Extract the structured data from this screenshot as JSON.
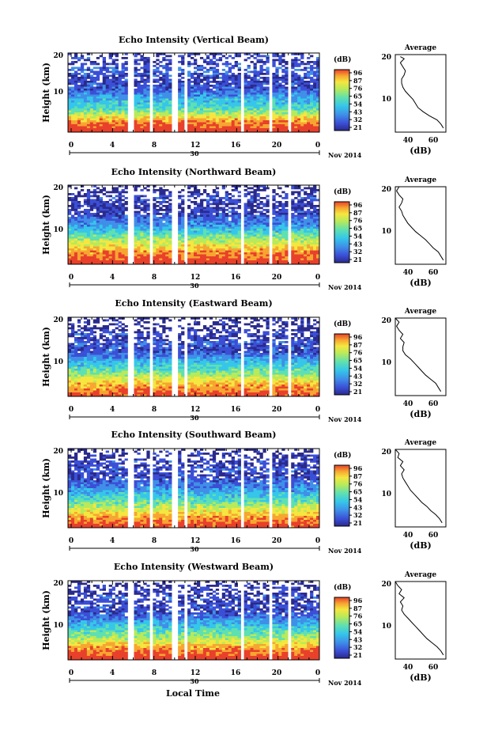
{
  "chart_data": [
    {
      "type": "heatmap",
      "title": "Echo Intensity (Vertical Beam)",
      "ylabel": "Height (km)",
      "y_ticks": [
        "10",
        "20"
      ],
      "ylim": [
        1,
        20
      ],
      "x_ticks": [
        "0",
        "4",
        "8",
        "12",
        "16",
        "20",
        "0"
      ],
      "xlim": [
        0,
        24
      ],
      "day_label": "30",
      "month_label": "Nov 2014",
      "colorbar_unit": "(dB)",
      "colorbar_ticks": [
        "96",
        "87",
        "76",
        "65",
        "54",
        "43",
        "32",
        "21"
      ],
      "value_range": [
        21,
        96
      ],
      "profile": {
        "title": "Average",
        "x_ticks": [
          "40",
          "60"
        ],
        "xlabel": "(dB)",
        "xlim": [
          30,
          70
        ],
        "y_ticks": [
          "10",
          "20"
        ],
        "heights": [
          2,
          3,
          4,
          5,
          6,
          7,
          8,
          9,
          10,
          11,
          12,
          13,
          14,
          15,
          16,
          17,
          18,
          19,
          19.5
        ],
        "values": [
          68,
          66,
          63,
          57,
          52,
          48,
          46,
          44,
          41,
          38,
          36,
          35,
          35,
          37,
          38,
          36,
          34,
          37,
          34
        ]
      }
    },
    {
      "type": "heatmap",
      "title": "Echo Intensity (Northward Beam)",
      "ylabel": "Height (km)",
      "y_ticks": [
        "10",
        "20"
      ],
      "ylim": [
        1,
        20
      ],
      "x_ticks": [
        "0",
        "4",
        "8",
        "12",
        "16",
        "20",
        "0"
      ],
      "xlim": [
        0,
        24
      ],
      "day_label": "30",
      "month_label": "Nov 2014",
      "colorbar_unit": "(dB)",
      "colorbar_ticks": [
        "96",
        "87",
        "76",
        "65",
        "54",
        "43",
        "32",
        "21"
      ],
      "value_range": [
        21,
        96
      ],
      "profile": {
        "title": "Average",
        "x_ticks": [
          "40",
          "60"
        ],
        "xlabel": "(dB)",
        "xlim": [
          30,
          70
        ],
        "y_ticks": [
          "10",
          "20"
        ],
        "heights": [
          2,
          3,
          4,
          5,
          6,
          7,
          8,
          9,
          10,
          11,
          12,
          13,
          14,
          15,
          16,
          17,
          18,
          19,
          20
        ],
        "values": [
          68,
          66,
          64,
          60,
          57,
          54,
          50,
          46,
          43,
          40,
          38,
          36,
          35,
          33,
          35,
          36,
          33,
          31,
          33
        ]
      }
    },
    {
      "type": "heatmap",
      "title": "Echo Intensity (Eastward Beam)",
      "ylabel": "Height (km)",
      "y_ticks": [
        "10",
        "20"
      ],
      "ylim": [
        1,
        20
      ],
      "x_ticks": [
        "0",
        "4",
        "8",
        "12",
        "16",
        "20",
        "0"
      ],
      "xlim": [
        0,
        24
      ],
      "day_label": "30",
      "month_label": "Nov 2014",
      "colorbar_unit": "(dB)",
      "colorbar_ticks": [
        "96",
        "87",
        "76",
        "65",
        "54",
        "43",
        "32",
        "21"
      ],
      "value_range": [
        21,
        96
      ],
      "profile": {
        "title": "Average",
        "x_ticks": [
          "40",
          "60"
        ],
        "xlabel": "(dB)",
        "xlim": [
          30,
          70
        ],
        "y_ticks": [
          "10",
          "20"
        ],
        "heights": [
          2,
          3,
          4,
          5,
          6,
          7,
          8,
          9,
          10,
          11,
          12,
          13,
          14,
          15,
          16,
          17,
          18,
          19,
          20
        ],
        "values": [
          66,
          64,
          62,
          58,
          54,
          51,
          48,
          45,
          42,
          38,
          36,
          36,
          37,
          34,
          36,
          33,
          31,
          33,
          30
        ]
      }
    },
    {
      "type": "heatmap",
      "title": "Echo Intensity (Southward Beam)",
      "ylabel": "Height (km)",
      "y_ticks": [
        "10",
        "20"
      ],
      "ylim": [
        1,
        20
      ],
      "x_ticks": [
        "0",
        "4",
        "8",
        "12",
        "16",
        "20",
        "0"
      ],
      "xlim": [
        0,
        24
      ],
      "day_label": "30",
      "month_label": "Nov 2014",
      "colorbar_unit": "(dB)",
      "colorbar_ticks": [
        "96",
        "87",
        "76",
        "65",
        "54",
        "43",
        "32",
        "21"
      ],
      "value_range": [
        21,
        96
      ],
      "profile": {
        "title": "Average",
        "x_ticks": [
          "40",
          "60"
        ],
        "xlabel": "(dB)",
        "xlim": [
          30,
          70
        ],
        "y_ticks": [
          "10",
          "20"
        ],
        "heights": [
          2,
          3,
          4,
          5,
          6,
          7,
          8,
          9,
          10,
          11,
          12,
          13,
          14,
          15,
          16,
          17,
          18,
          19,
          20
        ],
        "values": [
          67,
          65,
          62,
          58,
          55,
          51,
          48,
          45,
          42,
          40,
          38,
          36,
          35,
          37,
          34,
          36,
          32,
          33,
          30
        ]
      }
    },
    {
      "type": "heatmap",
      "title": "Echo Intensity (Westward Beam)",
      "ylabel": "Height (km)",
      "y_ticks": [
        "10",
        "20"
      ],
      "ylim": [
        1,
        20
      ],
      "x_ticks": [
        "0",
        "4",
        "8",
        "12",
        "16",
        "20",
        "0"
      ],
      "xlim": [
        0,
        24
      ],
      "day_label": "30",
      "month_label": "Nov 2014",
      "colorbar_unit": "(dB)",
      "colorbar_ticks": [
        "96",
        "87",
        "76",
        "65",
        "54",
        "43",
        "32",
        "21"
      ],
      "value_range": [
        21,
        96
      ],
      "profile": {
        "title": "Average",
        "x_ticks": [
          "40",
          "60"
        ],
        "xlabel": "(dB)",
        "xlim": [
          30,
          70
        ],
        "y_ticks": [
          "10",
          "20"
        ],
        "heights": [
          2,
          3,
          4,
          5,
          6,
          7,
          8,
          9,
          10,
          11,
          12,
          13,
          14,
          15,
          16,
          17,
          18,
          19,
          20
        ],
        "values": [
          68,
          66,
          63,
          59,
          55,
          52,
          49,
          46,
          43,
          40,
          37,
          35,
          36,
          34,
          37,
          33,
          35,
          32,
          30
        ]
      }
    }
  ],
  "xaxis_title": "Local Time",
  "colormap": [
    "#2a2a8c",
    "#3b4fd6",
    "#3f8fe8",
    "#35c6ea",
    "#5fe0b0",
    "#b8ea5a",
    "#f5e640",
    "#f7a531",
    "#e8402a"
  ]
}
